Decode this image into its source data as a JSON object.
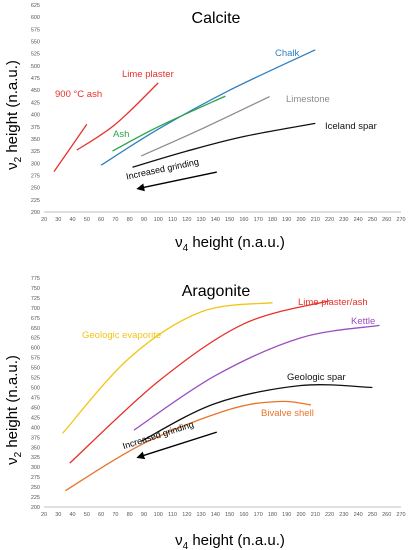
{
  "chart_data": [
    {
      "type": "line",
      "title": "Calcite",
      "xlabel": "v4 height (n.a.u.)",
      "ylabel": "v2 height (n.a.u.)",
      "xlabel_main": "ν",
      "xlabel_sub": "4",
      "xlabel_rest": " height (n.a.u.)",
      "ylabel_main": "ν",
      "ylabel_sub": "2",
      "ylabel_rest": " height (n.a.u.)",
      "xlim": [
        20,
        270
      ],
      "xstep": 10,
      "ylim": [
        200,
        625
      ],
      "ystep": 25,
      "grid": false,
      "series": [
        {
          "name": "900 °C ash",
          "color": "#e8302a",
          "points": [
            [
              27,
              283
            ],
            [
              50,
              380
            ]
          ]
        },
        {
          "name": "Lime plaster",
          "color": "#e8302a",
          "points": [
            [
              43,
              327
            ],
            [
              70,
              380
            ],
            [
              100,
              465
            ]
          ]
        },
        {
          "name": "Chalk",
          "color": "#2f7fc1",
          "points": [
            [
              60,
              296
            ],
            [
              100,
              370
            ],
            [
              150,
              450
            ],
            [
              210,
              533
            ]
          ]
        },
        {
          "name": "Ash",
          "color": "#2aa24a",
          "points": [
            [
              68,
              325
            ],
            [
              100,
              375
            ],
            [
              147,
              438
            ]
          ]
        },
        {
          "name": "Limestone",
          "color": "#8c8c8c",
          "points": [
            [
              88,
              315
            ],
            [
              130,
              370
            ],
            [
              178,
              437
            ]
          ]
        },
        {
          "name": "Iceland spar",
          "color": "#111111",
          "points": [
            [
              82,
              292
            ],
            [
              120,
              325
            ],
            [
              160,
              355
            ],
            [
              210,
              382
            ]
          ]
        }
      ],
      "annotation": {
        "text": "Increased grinding",
        "arrow_from": [
          141,
          282
        ],
        "arrow_to": [
          86,
          248
        ]
      }
    },
    {
      "type": "line",
      "title": "Aragonite",
      "xlabel": "v4 height (n.a.u.)",
      "ylabel": "v2 height (n.a.u.)",
      "xlabel_main": "ν",
      "xlabel_sub": "4",
      "xlabel_rest": " height (n.a.u.)",
      "ylabel_main": "ν",
      "ylabel_sub": "2",
      "ylabel_rest": " height (n.a.u.)",
      "xlim": [
        20,
        270
      ],
      "xstep": 10,
      "ylim": [
        200,
        775
      ],
      "ystep": 25,
      "grid": false,
      "series": [
        {
          "name": "Geologic evaporite",
          "color": "#f2c417",
          "points": [
            [
              33,
              385
            ],
            [
              80,
              575
            ],
            [
              130,
              690
            ],
            [
              180,
              713
            ]
          ]
        },
        {
          "name": "Lime plaster/ash",
          "color": "#e8302a",
          "points": [
            [
              38,
              310
            ],
            [
              100,
              515
            ],
            [
              160,
              660
            ],
            [
              220,
              718
            ]
          ]
        },
        {
          "name": "Kettle",
          "color": "#9a4fbf",
          "points": [
            [
              83,
              393
            ],
            [
              140,
              530
            ],
            [
              200,
              625
            ],
            [
              255,
              656
            ]
          ]
        },
        {
          "name": "Geologic spar",
          "color": "#111111",
          "points": [
            [
              88,
              365
            ],
            [
              140,
              460
            ],
            [
              200,
              505
            ],
            [
              250,
              500
            ]
          ]
        },
        {
          "name": "Bivalve shell",
          "color": "#e8742a",
          "points": [
            [
              35,
              241
            ],
            [
              90,
              360
            ],
            [
              150,
              445
            ],
            [
              185,
              465
            ],
            [
              207,
              456
            ]
          ]
        }
      ],
      "annotation": {
        "text": "Increased grinding",
        "arrow_from": [
          141,
          388
        ],
        "arrow_to": [
          86,
          325
        ]
      }
    }
  ]
}
